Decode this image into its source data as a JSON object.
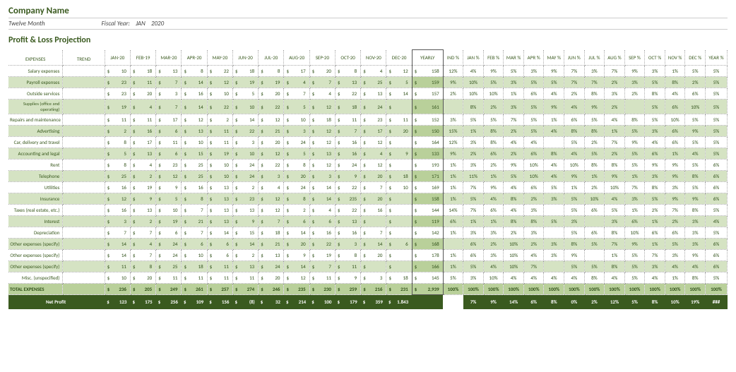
{
  "header": {
    "company": "Company Name",
    "period": "Twelve Month",
    "fy_label": "Fiscal Year:",
    "fy_month": "JAN",
    "fy_year": "2020",
    "title": "Profit & Loss Projection"
  },
  "cols": {
    "expenses": "EXPENSES",
    "trend": "TREND",
    "months": [
      "JAN-20",
      "FEB-19",
      "MAR-20",
      "APR-20",
      "MAY-20",
      "JUN-20",
      "JUL-20",
      "AUG-20",
      "SEP-20",
      "OCT-20",
      "NOV-20",
      "DEC-20"
    ],
    "yearly": "YEARLY",
    "ind": "IND %",
    "pct_months": [
      "JAN %",
      "FEB %",
      "MAR %",
      "APR %",
      "MAY %",
      "JUN %",
      "JUL %",
      "AUG %",
      "SEP %",
      "OCT %",
      "NOV %",
      "DEC %"
    ],
    "ypct": "YEAR %"
  },
  "rows": [
    {
      "label": "Salary expenses",
      "shade": false,
      "vals": [
        10,
        18,
        13,
        8,
        22,
        18,
        8,
        17,
        20,
        8,
        4,
        12
      ],
      "yearly": 158,
      "ind": "12%",
      "pcts": [
        "4%",
        "9%",
        "5%",
        "3%",
        "9%",
        "7%",
        "3%",
        "7%",
        "9%",
        "3%",
        "1%",
        "5%"
      ],
      "ypct": "5%"
    },
    {
      "label": "Payroll expenses",
      "shade": true,
      "vals": [
        23,
        11,
        7,
        14,
        12,
        19,
        19,
        4,
        7,
        13,
        25,
        5
      ],
      "yearly": 159,
      "ind": "9%",
      "pcts": [
        "10%",
        "5%",
        "3%",
        "5%",
        "5%",
        "7%",
        "7%",
        "2%",
        "3%",
        "5%",
        "8%",
        "2%"
      ],
      "ypct": "5%"
    },
    {
      "label": "Outside services",
      "shade": false,
      "vals": [
        23,
        20,
        3,
        16,
        10,
        5,
        20,
        7,
        4,
        22,
        13,
        14
      ],
      "yearly": 157,
      "ind": "2%",
      "pcts": [
        "10%",
        "10%",
        "1%",
        "6%",
        "4%",
        "2%",
        "8%",
        "3%",
        "2%",
        "8%",
        "4%",
        "6%"
      ],
      "ypct": "5%"
    },
    {
      "label": "Supplies (office and operating)",
      "shade": true,
      "vals": [
        19,
        4,
        7,
        14,
        22,
        10,
        22,
        5,
        12,
        18,
        24
      ],
      "yearly": 161,
      "ind": "",
      "pcts": [
        "8%",
        "2%",
        "3%",
        "5%",
        "9%",
        "4%",
        "9%",
        "2%",
        "",
        "5%",
        "6%",
        "10%"
      ],
      "ypct": "5%"
    },
    {
      "label": "Repairs and maintenance",
      "shade": false,
      "vals": [
        11,
        11,
        17,
        12,
        2,
        14,
        12,
        10,
        18,
        11,
        23,
        11
      ],
      "yearly": 152,
      "ind": "3%",
      "pcts": [
        "5%",
        "5%",
        "7%",
        "5%",
        "1%",
        "6%",
        "5%",
        "4%",
        "8%",
        "5%",
        "10%",
        "5%"
      ],
      "ypct": "5%"
    },
    {
      "label": "Advertising",
      "shade": true,
      "vals": [
        2,
        16,
        6,
        13,
        11,
        22,
        21,
        3,
        12,
        7,
        17,
        20
      ],
      "yearly": 150,
      "ind": "15%",
      "pcts": [
        "1%",
        "8%",
        "2%",
        "5%",
        "4%",
        "8%",
        "8%",
        "1%",
        "5%",
        "3%",
        "6%",
        "9%"
      ],
      "ypct": "5%"
    },
    {
      "label": "Car, delivery and travel",
      "shade": false,
      "vals": [
        8,
        17,
        11,
        10,
        11,
        3,
        20,
        24,
        12,
        16,
        12
      ],
      "yearly": 164,
      "ind": "12%",
      "pcts": [
        "3%",
        "8%",
        "4%",
        "4%",
        "",
        "5%",
        "2%",
        "7%",
        "9%",
        "4%",
        "6%",
        "5%"
      ],
      "ypct": "5%"
    },
    {
      "label": "Accounting and legal",
      "shade": true,
      "vals": [
        5,
        13,
        6,
        15,
        19,
        10,
        12,
        5,
        13,
        16,
        4,
        9
      ],
      "yearly": 133,
      "ind": "9%",
      "pcts": [
        "2%",
        "6%",
        "2%",
        "6%",
        "8%",
        "4%",
        "5%",
        "2%",
        "5%",
        "6%",
        "1%",
        "4%"
      ],
      "ypct": "5%"
    },
    {
      "label": "Rent",
      "shade": false,
      "vals": [
        8,
        4,
        23,
        25,
        10,
        24,
        22,
        8,
        12,
        24,
        12
      ],
      "yearly": 193,
      "ind": "1%",
      "pcts": [
        "3%",
        "2%",
        "9%",
        "10%",
        "4%",
        "10%",
        "8%",
        "8%",
        "5%",
        "9%",
        "9%",
        "5%"
      ],
      "ypct": "6%"
    },
    {
      "label": "Telephone",
      "shade": true,
      "vals": [
        25,
        2,
        12,
        25,
        10,
        24,
        3,
        20,
        3,
        9,
        20,
        18
      ],
      "yearly": 171,
      "ind": "1%",
      "pcts": [
        "11%",
        "1%",
        "5%",
        "10%",
        "4%",
        "9%",
        "1%",
        "9%",
        "1%",
        "3%",
        "9%",
        "8%"
      ],
      "ypct": "6%"
    },
    {
      "label": "Utilities",
      "shade": false,
      "vals": [
        16,
        19,
        9,
        16,
        13,
        2,
        4,
        24,
        14,
        22,
        7,
        10
      ],
      "yearly": 169,
      "ind": "1%",
      "pcts": [
        "7%",
        "9%",
        "4%",
        "6%",
        "5%",
        "1%",
        "2%",
        "10%",
        "7%",
        "8%",
        "3%",
        "5%"
      ],
      "ypct": "6%"
    },
    {
      "label": "Insurance",
      "shade": true,
      "vals": [
        12,
        9,
        5,
        8,
        13,
        23,
        12,
        8,
        14,
        235,
        20
      ],
      "yearly": 158,
      "ind": "1%",
      "pcts": [
        "5%",
        "4%",
        "8%",
        "2%",
        "3%",
        "5%",
        "10%",
        "4%",
        "3%",
        "5%",
        "9%",
        "9%"
      ],
      "ypct": "6%"
    },
    {
      "label": "Taxes (real estate, etc.)",
      "shade": false,
      "vals": [
        16,
        13,
        10,
        7,
        13,
        13,
        12,
        2,
        4,
        22,
        16
      ],
      "yearly": 144,
      "ind": "14%",
      "pcts": [
        "7%",
        "6%",
        "4%",
        "3%",
        "",
        "5%",
        "6%",
        "5%",
        "1%",
        "2%",
        "7%",
        "8%"
      ],
      "ypct": "5%"
    },
    {
      "label": "Interest",
      "shade": true,
      "vals": [
        3,
        2,
        19,
        21,
        13,
        9,
        7,
        6,
        6,
        13
      ],
      "yearly": 119,
      "ind": "6%",
      "pcts": [
        "1%",
        "1%",
        "8%",
        "8%",
        "5%",
        "3%",
        "",
        "3%",
        "6%",
        "1%",
        "2%",
        "3%"
      ],
      "ypct": "4%"
    },
    {
      "label": "Depreciation",
      "shade": false,
      "vals": [
        7,
        7,
        6,
        7,
        14,
        15,
        18,
        14,
        16,
        16,
        7
      ],
      "yearly": 142,
      "ind": "1%",
      "pcts": [
        "3%",
        "3%",
        "2%",
        "3%",
        "",
        "5%",
        "6%",
        "8%",
        "10%",
        "6%",
        "6%",
        "3%"
      ],
      "ypct": "5%"
    },
    {
      "label": "Other expenses (specify)",
      "shade": true,
      "vals": [
        14,
        4,
        24,
        6,
        6,
        14,
        21,
        20,
        22,
        3,
        14,
        6
      ],
      "yearly": 168,
      "ind": "",
      "pcts": [
        "6%",
        "2%",
        "10%",
        "2%",
        "3%",
        "8%",
        "5%",
        "7%",
        "9%",
        "1%",
        "5%",
        "3%"
      ],
      "ypct": "6%"
    },
    {
      "label": "Other expenses (specify)",
      "shade": false,
      "vals": [
        14,
        7,
        24,
        10,
        6,
        2,
        13,
        9,
        19,
        8,
        20
      ],
      "yearly": 178,
      "ind": "1%",
      "pcts": [
        "6%",
        "3%",
        "10%",
        "4%",
        "3%",
        "9%",
        "",
        "1%",
        "5%",
        "7%",
        "3%",
        "9%"
      ],
      "ypct": "6%"
    },
    {
      "label": "Other expenses (specify)",
      "shade": true,
      "vals": [
        11,
        8,
        25,
        18,
        11,
        13,
        24,
        14,
        7,
        11
      ],
      "yearly": 166,
      "ind": "1%",
      "pcts": [
        "5%",
        "4%",
        "10%",
        "7%",
        "",
        "5%",
        "5%",
        "8%",
        "5%",
        "3%",
        "4%",
        "4%"
      ],
      "ypct": "6%"
    },
    {
      "label": "Misc. (unspecified)",
      "shade": false,
      "vals": [
        10,
        20,
        11,
        11,
        11,
        11,
        20,
        12,
        11,
        9,
        3,
        18
      ],
      "yearly": 145,
      "ind": "5%",
      "pcts": [
        "3%",
        "10%",
        "4%",
        "4%",
        "4%",
        "4%",
        "8%",
        "4%",
        "5%",
        "4%",
        "1%",
        "8%"
      ],
      "ypct": "5%"
    }
  ],
  "total": {
    "label": "TOTAL EXPENSES",
    "vals": [
      "236",
      "205",
      "249",
      "261",
      "257",
      "274",
      "246",
      "235",
      "230",
      "259",
      "216",
      "231"
    ],
    "yearly": "2,939",
    "ind": "100%",
    "pcts": [
      "100%",
      "100%",
      "100%",
      "100%",
      "100%",
      "100%",
      "100%",
      "100%",
      "100%",
      "100%",
      "100%",
      "100%"
    ],
    "ypct": "100%"
  },
  "netprofit": {
    "label": "Net Profit",
    "vals": [
      "123",
      "175",
      "256",
      "109",
      "156",
      "(8)",
      "32",
      "214",
      "100",
      "179",
      "359",
      "1.843"
    ],
    "yearly": "",
    "ind": "",
    "pcts": [
      "7%",
      "9%",
      "14%",
      "6%",
      "8%",
      "0%",
      "2%",
      "12%",
      "5%",
      "8%",
      "10%",
      "19%"
    ],
    "ypct": "###"
  }
}
